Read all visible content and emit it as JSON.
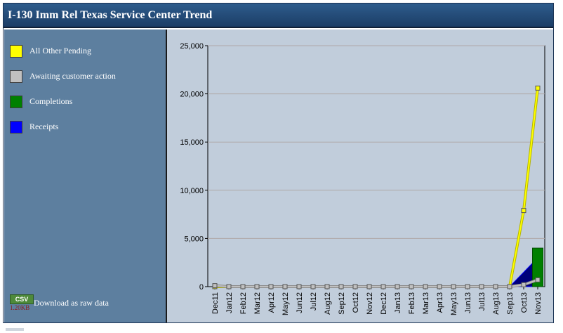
{
  "title": "I-130 Imm Rel Texas Service Center Trend",
  "legend": [
    {
      "label": "All Other Pending",
      "color": "#ffff00"
    },
    {
      "label": "Awaiting customer action",
      "color": "#c0c0c0"
    },
    {
      "label": "Completions",
      "color": "#008000"
    },
    {
      "label": "Receipts",
      "color": "#0000ff"
    }
  ],
  "download": {
    "badge": "CSV",
    "size": "1.20KB",
    "label": "Download as raw data"
  },
  "chart_data": {
    "type": "line",
    "categories": [
      "Dec11",
      "Jan12",
      "Feb12",
      "Mar12",
      "Apr12",
      "May12",
      "Jun12",
      "Jul12",
      "Aug12",
      "Sep12",
      "Oct12",
      "Nov12",
      "Dec12",
      "Jan13",
      "Feb13",
      "Mar13",
      "Apr13",
      "May13",
      "Jun13",
      "Jul13",
      "Aug13",
      "Sep13",
      "Oct13",
      "Nov13"
    ],
    "ylim": [
      0,
      25000
    ],
    "yticks": [
      0,
      5000,
      10000,
      15000,
      20000,
      25000
    ],
    "ytick_labels": [
      "0",
      "5,000",
      "10,000",
      "15,000",
      "20,000",
      "25,000"
    ],
    "grid": true,
    "series": [
      {
        "name": "All Other Pending",
        "type": "line",
        "color": "#ffff00",
        "values": [
          0,
          0,
          0,
          0,
          0,
          0,
          0,
          0,
          0,
          0,
          0,
          0,
          0,
          0,
          0,
          0,
          0,
          0,
          0,
          0,
          0,
          0,
          7900,
          20600
        ]
      },
      {
        "name": "Awaiting customer action",
        "type": "line",
        "color": "#c0c0c0",
        "values": [
          100,
          0,
          0,
          0,
          0,
          0,
          0,
          0,
          0,
          0,
          0,
          0,
          0,
          0,
          0,
          0,
          0,
          0,
          0,
          0,
          0,
          0,
          200,
          700
        ]
      },
      {
        "name": "Completions",
        "type": "bar",
        "color": "#008000",
        "values": [
          0,
          0,
          0,
          0,
          0,
          0,
          0,
          0,
          0,
          0,
          0,
          0,
          0,
          0,
          0,
          0,
          0,
          0,
          0,
          0,
          0,
          0,
          0,
          4000
        ]
      },
      {
        "name": "Receipts",
        "type": "area",
        "color": "#0000ff",
        "values": [
          0,
          0,
          0,
          0,
          0,
          0,
          0,
          0,
          0,
          0,
          0,
          0,
          0,
          0,
          0,
          0,
          0,
          0,
          0,
          0,
          0,
          0,
          1500,
          3000
        ]
      }
    ]
  }
}
